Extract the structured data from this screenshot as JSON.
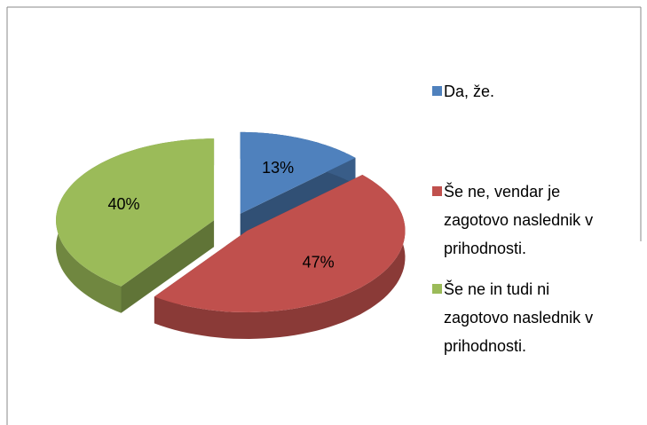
{
  "chart_data": {
    "type": "pie3d",
    "categories": [
      "Da, že.",
      "Še ne, vendar je zagotovo naslednik v prihodnosti.",
      "Še ne in tudi ni zagotovo naslednik v prihodnosti."
    ],
    "values": [
      13,
      47,
      40
    ],
    "value_labels": [
      "13%",
      "47%",
      "40%"
    ],
    "colors": [
      "#4f81bd",
      "#c0504d",
      "#9bbb59"
    ],
    "legend": "right"
  }
}
